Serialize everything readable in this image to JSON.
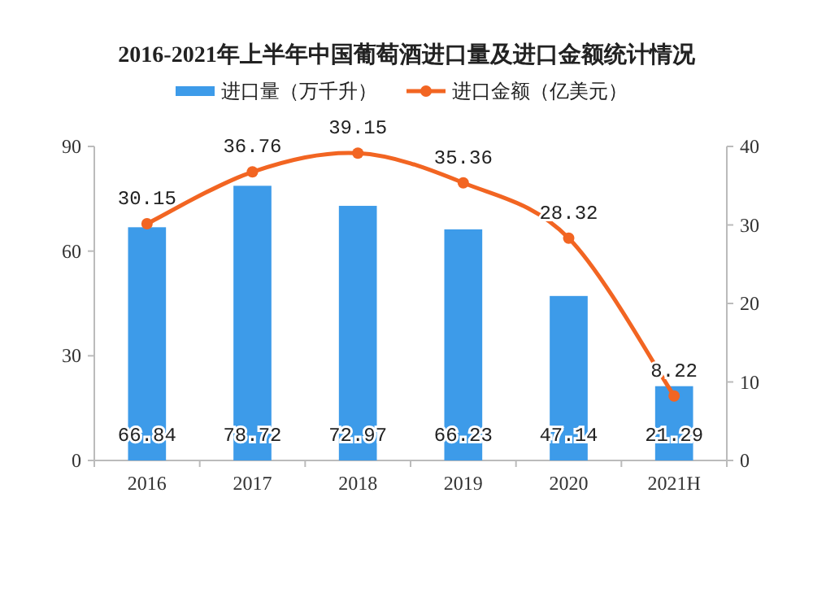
{
  "chart_data": {
    "type": "bar",
    "title": "2016-2021年上半年中国葡萄酒进口量及进口金额统计情况",
    "categories": [
      "2016",
      "2017",
      "2018",
      "2019",
      "2020",
      "2021H"
    ],
    "series": [
      {
        "name": "进口量（万千升）",
        "color": "#3d9be9",
        "values": [
          66.84,
          78.72,
          72.97,
          66.23,
          47.14,
          21.29
        ]
      },
      {
        "name": "进口金额（亿美元）",
        "type": "line",
        "axis": "y2",
        "color": "#f26522",
        "values": [
          30.15,
          36.76,
          39.15,
          35.36,
          28.32,
          8.22
        ]
      }
    ],
    "ylim": [
      0,
      90
    ],
    "yticks": [
      0,
      30,
      60,
      90
    ],
    "y2lim": [
      0,
      40
    ],
    "y2ticks": [
      0,
      10,
      20,
      30,
      40
    ],
    "data_labels": true,
    "legend": "top",
    "marker": "circle"
  }
}
